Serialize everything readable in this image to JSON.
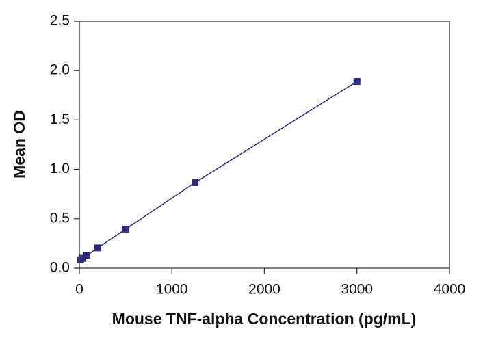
{
  "chart_data": {
    "type": "line",
    "x_label": "Mouse TNF-alpha Concentration (pg/mL)",
    "y_label": "Mean OD",
    "x": [
      12.8,
      32,
      80,
      200,
      500,
      1250,
      3000
    ],
    "series": [
      {
        "color": "#2b2a7c",
        "values": [
          0.085,
          0.1,
          0.13,
          0.205,
          0.395,
          0.866,
          1.89
        ]
      }
    ],
    "xlim": [
      0,
      4000
    ],
    "xticks": [
      0,
      1000,
      2000,
      3000,
      4000
    ],
    "ylim": [
      0,
      2.5
    ],
    "yticks": [
      {
        "value": 0,
        "label": "0.0"
      },
      0.5,
      {
        "value": 1,
        "label": "1.0"
      },
      1.5,
      {
        "value": 2,
        "label": "2.0"
      },
      2.5
    ]
  }
}
